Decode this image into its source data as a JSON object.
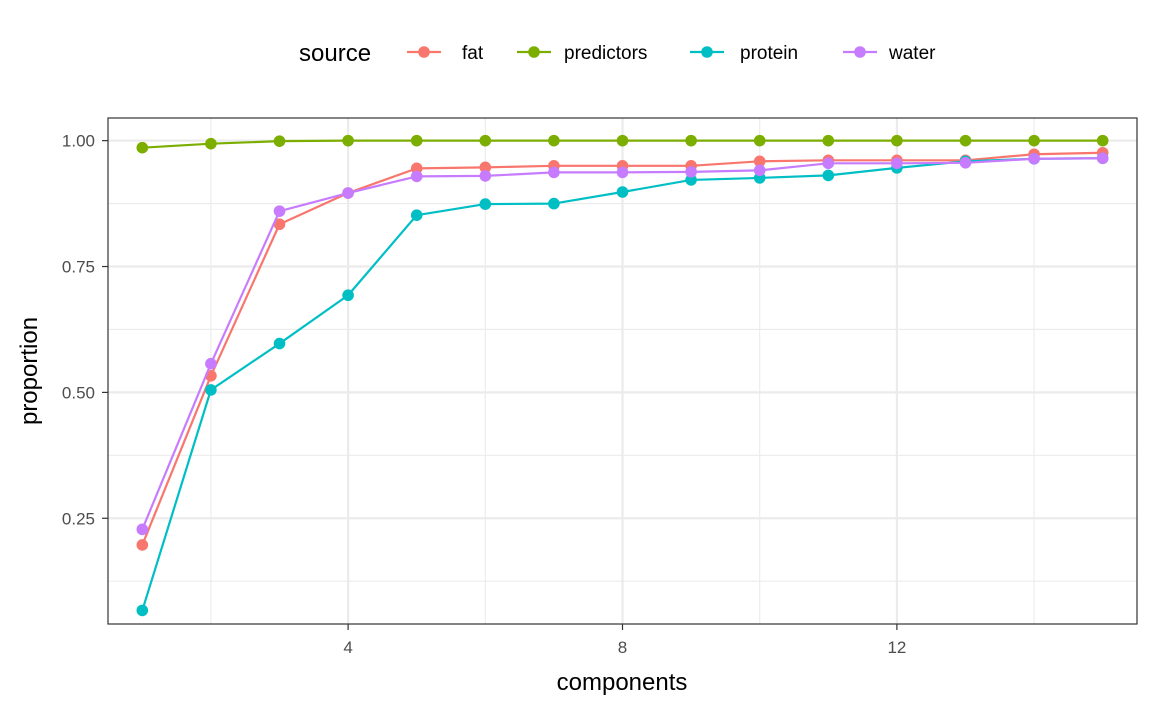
{
  "chart_data": {
    "type": "line",
    "xlabel": "components",
    "ylabel": "proportion",
    "xlim": [
      0.5,
      15.5
    ],
    "ylim": [
      0.04,
      1.045
    ],
    "x_ticks": [
      4,
      8,
      12
    ],
    "x_ticks_minor": [
      2,
      6,
      10,
      14
    ],
    "y_ticks": [
      0.25,
      0.5,
      0.75,
      1.0
    ],
    "y_tick_labels": [
      "0.25",
      "0.50",
      "0.75",
      "1.00"
    ],
    "y_ticks_minor": [
      0.125,
      0.375,
      0.625,
      0.875
    ],
    "grid": true,
    "legend": {
      "title": "source",
      "position": "top"
    },
    "x": [
      1,
      2,
      3,
      4,
      5,
      6,
      7,
      8,
      9,
      10,
      11,
      12,
      13,
      14,
      15
    ],
    "series": [
      {
        "name": "fat",
        "color": "#F8766D",
        "values": [
          0.197,
          0.533,
          0.834,
          0.896,
          0.945,
          0.947,
          0.95,
          0.95,
          0.95,
          0.959,
          0.961,
          0.961,
          0.961,
          0.973,
          0.976
        ]
      },
      {
        "name": "predictors",
        "color": "#7CAE00",
        "values": [
          0.986,
          0.994,
          0.999,
          1.0,
          1.0,
          1.0,
          1.0,
          1.0,
          1.0,
          1.0,
          1.0,
          1.0,
          1.0,
          1.0,
          1.0
        ]
      },
      {
        "name": "protein",
        "color": "#00BFC4",
        "values": [
          0.067,
          0.505,
          0.597,
          0.693,
          0.852,
          0.874,
          0.875,
          0.898,
          0.922,
          0.926,
          0.931,
          0.946,
          0.959,
          0.964,
          0.965
        ]
      },
      {
        "name": "water",
        "color": "#C77CFF",
        "values": [
          0.228,
          0.557,
          0.86,
          0.896,
          0.929,
          0.93,
          0.937,
          0.937,
          0.938,
          0.941,
          0.955,
          0.955,
          0.956,
          0.964,
          0.965
        ]
      }
    ]
  }
}
